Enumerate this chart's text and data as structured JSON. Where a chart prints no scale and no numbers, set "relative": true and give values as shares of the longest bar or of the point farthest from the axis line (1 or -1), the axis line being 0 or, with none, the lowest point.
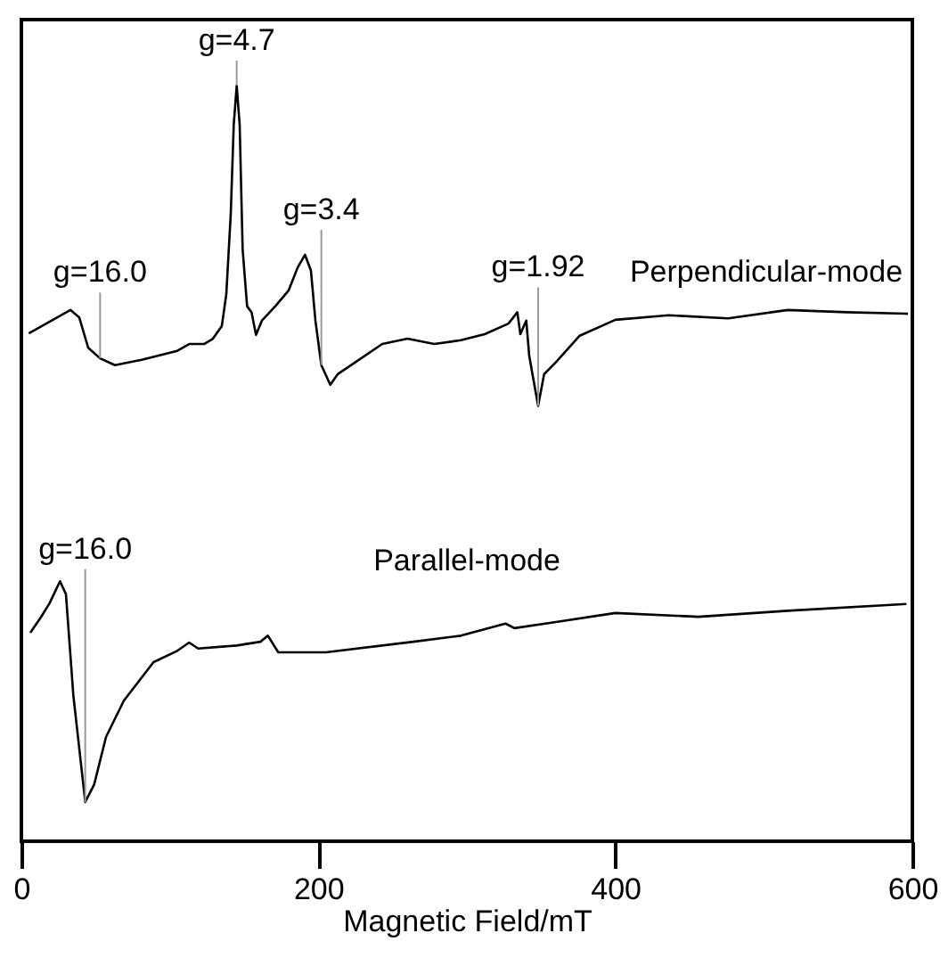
{
  "chart_data": {
    "type": "line",
    "relative": true,
    "xlabel": "Magnetic Field/mT",
    "xlim": [
      0,
      600
    ],
    "xticks": [
      0,
      200,
      400,
      600
    ],
    "grid": false,
    "marker": "none",
    "line_style": "solid",
    "series": [
      {
        "name": "Perpendicular-mode",
        "color": "#000000",
        "x": [
          5,
          33,
          39,
          45,
          53,
          63,
          81,
          105,
          113,
          123,
          129,
          135,
          138,
          141,
          143,
          145,
          147,
          149,
          152,
          155,
          158,
          162,
          171,
          180,
          186,
          191,
          195,
          198,
          202,
          208,
          213,
          225,
          243,
          260,
          278,
          296,
          312,
          328,
          334,
          336,
          340,
          342,
          348,
          352,
          360,
          376,
          400,
          436,
          476,
          516,
          556,
          597
        ],
        "values": [
          0.672,
          0.703,
          0.693,
          0.653,
          0.639,
          0.63,
          0.637,
          0.649,
          0.658,
          0.658,
          0.665,
          0.682,
          0.724,
          0.83,
          0.948,
          1.0,
          0.948,
          0.783,
          0.708,
          0.7,
          0.67,
          0.689,
          0.708,
          0.729,
          0.759,
          0.776,
          0.755,
          0.689,
          0.63,
          0.604,
          0.618,
          0.634,
          0.658,
          0.665,
          0.658,
          0.663,
          0.671,
          0.685,
          0.7,
          0.671,
          0.689,
          0.642,
          0.576,
          0.618,
          0.634,
          0.669,
          0.69,
          0.696,
          0.692,
          0.703,
          0.7,
          0.698
        ]
      },
      {
        "name": "Parallel-mode",
        "color": "#000000",
        "x": [
          6,
          13,
          19,
          26,
          30,
          35,
          43,
          49,
          57,
          69,
          89,
          105,
          113,
          119,
          145,
          161,
          166,
          173,
          205,
          264,
          296,
          326,
          332,
          356,
          400,
          456,
          516,
          596
        ],
        "values": [
          0.276,
          0.296,
          0.315,
          0.344,
          0.327,
          0.193,
          0.052,
          0.075,
          0.138,
          0.186,
          0.237,
          0.252,
          0.263,
          0.255,
          0.259,
          0.264,
          0.272,
          0.25,
          0.25,
          0.264,
          0.272,
          0.288,
          0.282,
          0.289,
          0.302,
          0.297,
          0.305,
          0.314
        ]
      }
    ],
    "annotations": [
      {
        "text": "g=16.0",
        "x": 53,
        "y": 0.639
      },
      {
        "text": "g=4.7",
        "x": 145,
        "y": 1.0
      },
      {
        "text": "g=3.4",
        "x": 202,
        "y": 0.63
      },
      {
        "text": "g=1.92",
        "x": 348,
        "y": 0.576
      },
      {
        "text": "g=16.0",
        "x": 43,
        "y": 0.052
      }
    ]
  }
}
